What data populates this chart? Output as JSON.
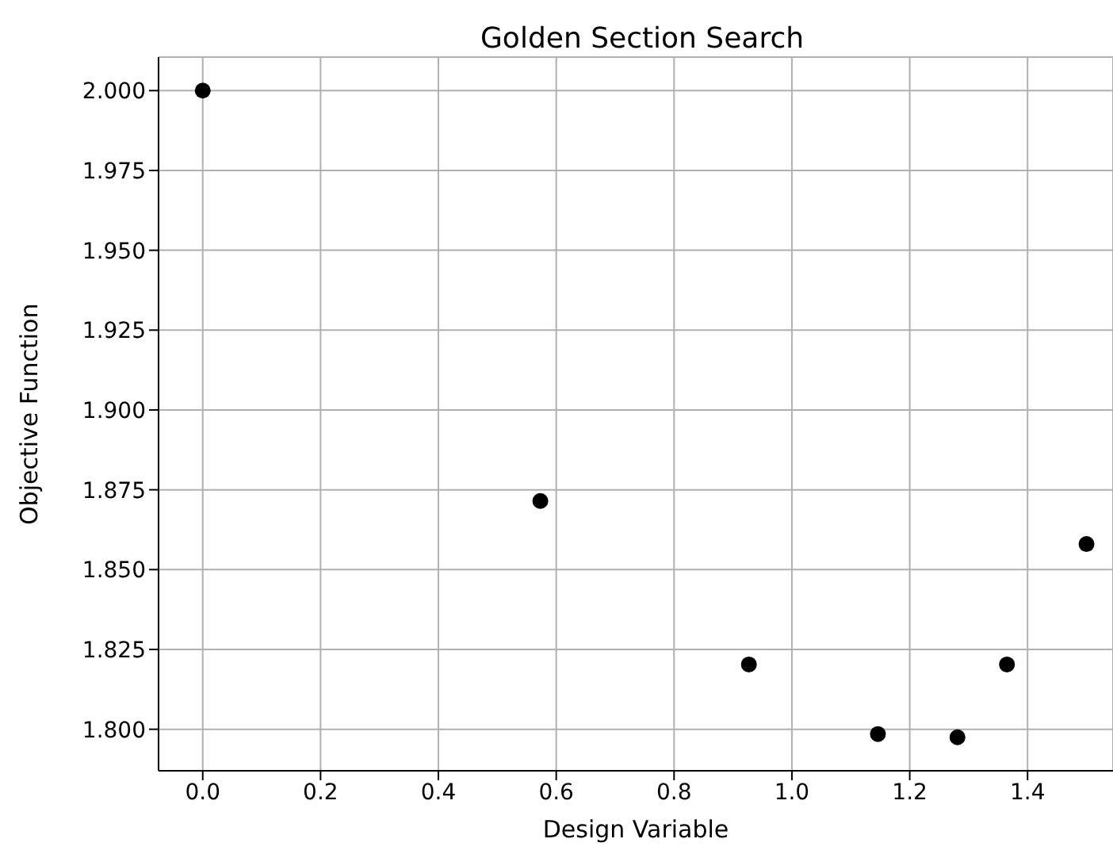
{
  "chart_data": {
    "type": "scatter",
    "title": "Golden Section Search",
    "xlabel": "Design Variable",
    "ylabel": "Objective Function",
    "x": [
      0,
      0.573,
      0.927,
      1.146,
      1.281,
      1.365,
      1.5
    ],
    "series": [
      {
        "color": "#000000",
        "values": [
          2.0,
          1.8715,
          1.8203,
          1.7985,
          1.7975,
          1.8203,
          1.858
        ]
      }
    ],
    "xlim": [
      -0.075,
      1.545
    ],
    "xticks": [
      {
        "value": 0,
        "label": "0.0"
      },
      {
        "value": 0.2,
        "label": "0.2"
      },
      {
        "value": 0.4,
        "label": "0.4"
      },
      {
        "value": 0.6,
        "label": "0.6"
      },
      {
        "value": 0.8,
        "label": "0.8"
      },
      {
        "value": 1,
        "label": "1.0"
      },
      {
        "value": 1.2,
        "label": "1.2"
      },
      {
        "value": 1.4,
        "label": "1.4"
      }
    ],
    "ylim": [
      1.787,
      2.0105
    ],
    "yticks": [
      {
        "value": 1.8,
        "label": "1.800"
      },
      {
        "value": 1.825,
        "label": "1.825"
      },
      {
        "value": 1.85,
        "label": "1.850"
      },
      {
        "value": 1.875,
        "label": "1.875"
      },
      {
        "value": 1.9,
        "label": "1.900"
      },
      {
        "value": 1.925,
        "label": "1.925"
      },
      {
        "value": 1.95,
        "label": "1.950"
      },
      {
        "value": 1.975,
        "label": "1.975"
      },
      {
        "value": 2,
        "label": "2.000"
      }
    ],
    "grid": true,
    "marker": "circle",
    "legend": false
  }
}
